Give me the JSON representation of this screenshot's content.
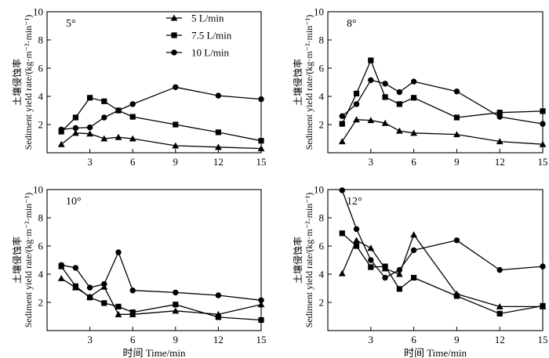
{
  "chart_data": {
    "type": "line",
    "layout": "2x2",
    "x": [
      1,
      2,
      3,
      4,
      5,
      6,
      9,
      12,
      15
    ],
    "xticks": [
      3,
      6,
      9,
      12,
      15
    ],
    "xlim": [
      0,
      15
    ],
    "ylim": [
      0,
      10
    ],
    "yticks": [
      2,
      4,
      6,
      8,
      10
    ],
    "xlabel": "时间 Time/min",
    "ylabel_cn": "土壤侵蚀率",
    "ylabel_en": "Sediment yield rate/(kg·m⁻²·min⁻¹)",
    "legend": [
      {
        "name": "5 L/min",
        "marker": "triangle"
      },
      {
        "name": "7.5 L/min",
        "marker": "square"
      },
      {
        "name": "10 L/min",
        "marker": "circle"
      }
    ],
    "panels": [
      {
        "title": "5°",
        "series": [
          {
            "name": "5 L/min",
            "marker": "triangle",
            "values": [
              0.6,
              1.4,
              1.35,
              1.0,
              1.1,
              1.0,
              0.5,
              0.4,
              0.3
            ]
          },
          {
            "name": "7.5 L/min",
            "marker": "square",
            "values": [
              1.5,
              2.5,
              3.9,
              3.65,
              3.0,
              2.55,
              2.0,
              1.45,
              0.85
            ]
          },
          {
            "name": "10 L/min",
            "marker": "circle",
            "values": [
              1.65,
              1.75,
              1.8,
              2.5,
              3.0,
              3.45,
              4.65,
              4.05,
              3.8
            ]
          }
        ]
      },
      {
        "title": "8°",
        "series": [
          {
            "name": "5 L/min",
            "marker": "triangle",
            "values": [
              0.8,
              2.35,
              2.3,
              2.1,
              1.55,
              1.4,
              1.3,
              0.8,
              0.6
            ]
          },
          {
            "name": "7.5 L/min",
            "marker": "square",
            "values": [
              2.05,
              4.2,
              6.55,
              3.95,
              3.45,
              3.9,
              2.5,
              2.85,
              2.95
            ]
          },
          {
            "name": "10 L/min",
            "marker": "circle",
            "values": [
              2.6,
              3.45,
              5.15,
              4.9,
              4.3,
              5.05,
              4.35,
              2.55,
              2.05
            ]
          }
        ]
      },
      {
        "title": "10°",
        "series": [
          {
            "name": "5 L/min",
            "marker": "triangle",
            "values": [
              3.7,
              3.05,
              2.4,
              3.1,
              1.15,
              1.15,
              1.4,
              1.15,
              1.85
            ]
          },
          {
            "name": "7.5 L/min",
            "marker": "square",
            "values": [
              4.55,
              3.15,
              2.35,
              1.95,
              1.7,
              1.3,
              1.85,
              0.95,
              0.75
            ]
          },
          {
            "name": "10 L/min",
            "marker": "circle",
            "values": [
              4.65,
              4.45,
              3.05,
              3.3,
              5.55,
              2.85,
              2.7,
              2.5,
              2.15
            ]
          }
        ]
      },
      {
        "title": "12°",
        "series": [
          {
            "name": "5 L/min",
            "marker": "triangle",
            "values": [
              4.05,
              6.4,
              5.85,
              4.4,
              4.0,
              6.8,
              2.6,
              1.7,
              1.7
            ]
          },
          {
            "name": "7.5 L/min",
            "marker": "square",
            "values": [
              6.9,
              6.0,
              4.5,
              4.55,
              2.95,
              3.75,
              2.45,
              1.2,
              1.75
            ]
          },
          {
            "name": "10 L/min",
            "marker": "circle",
            "values": [
              9.95,
              7.2,
              5.0,
              3.75,
              4.3,
              5.7,
              6.4,
              4.3,
              4.55
            ]
          }
        ]
      }
    ]
  }
}
